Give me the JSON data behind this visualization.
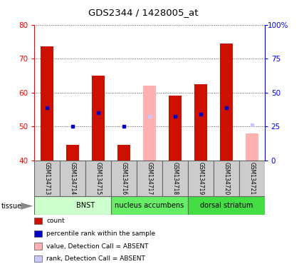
{
  "title": "GDS2344 / 1428005_at",
  "samples": [
    "GSM134713",
    "GSM134714",
    "GSM134715",
    "GSM134716",
    "GSM134717",
    "GSM134718",
    "GSM134719",
    "GSM134720",
    "GSM134721"
  ],
  "ylim": [
    40,
    80
  ],
  "ylim_right": [
    0,
    100
  ],
  "yticks_left": [
    40,
    50,
    60,
    70,
    80
  ],
  "yticks_right": [
    0,
    25,
    50,
    75,
    100
  ],
  "count_values": [
    73.5,
    44.5,
    65.0,
    44.5,
    null,
    59.0,
    62.5,
    74.5,
    null
  ],
  "rank_values": [
    55.5,
    50.0,
    54.0,
    50.0,
    null,
    53.0,
    53.5,
    55.5,
    null
  ],
  "absent_value_values": [
    null,
    null,
    null,
    null,
    62.0,
    null,
    null,
    null,
    48.0
  ],
  "absent_rank_values": [
    null,
    null,
    null,
    null,
    53.0,
    null,
    null,
    null,
    50.5
  ],
  "tissue_groups": [
    {
      "label": "BNST",
      "start": 0,
      "end": 3,
      "color": "#ccffcc"
    },
    {
      "label": "nucleus accumbens",
      "start": 3,
      "end": 5,
      "color": "#66ee66"
    },
    {
      "label": "dorsal striatum",
      "start": 6,
      "end": 8,
      "color": "#44dd44"
    }
  ],
  "bar_width": 0.5,
  "count_color": "#cc1100",
  "rank_color": "#0000cc",
  "absent_value_color": "#ffb0b0",
  "absent_rank_color": "#c8c8ff",
  "grid_color": "#555555",
  "bg_color": "#ffffff",
  "legend_items": [
    {
      "label": "count",
      "color": "#cc1100"
    },
    {
      "label": "percentile rank within the sample",
      "color": "#0000cc"
    },
    {
      "label": "value, Detection Call = ABSENT",
      "color": "#ffb0b0"
    },
    {
      "label": "rank, Detection Call = ABSENT",
      "color": "#c8c8ff"
    }
  ]
}
